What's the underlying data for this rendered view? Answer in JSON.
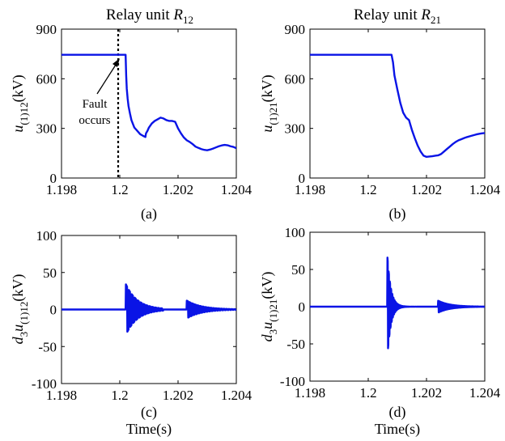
{
  "figure": {
    "line_color": "#0a14e6"
  },
  "chart_data": [
    {
      "panel": "a",
      "type": "line",
      "title_main": "Relay unit ",
      "title_var": "R",
      "title_sub": "12",
      "ylabel_parts": [
        "u",
        "(1)12",
        "(kV)"
      ],
      "caption": "(a)",
      "xlim": [
        1.198,
        1.204
      ],
      "ylim": [
        0,
        900
      ],
      "xticks": [
        1.198,
        1.2,
        1.202,
        1.204
      ],
      "xtick_labels": [
        "1.198",
        "1.2",
        "1.202",
        "1.204"
      ],
      "yticks": [
        0,
        300,
        600,
        900
      ],
      "ytick_labels": [
        "0",
        "300",
        "600",
        "900"
      ],
      "fault_line_x": 1.2,
      "annotation_lines": [
        "Fault",
        "occurs"
      ],
      "series": [
        {
          "x": [
            1.198,
            1.19985,
            1.2002,
            1.20022,
            1.20024,
            1.20027,
            1.2003,
            1.20035,
            1.2004,
            1.2005,
            1.2006,
            1.2007,
            1.2008,
            1.20088,
            1.2009,
            1.20095,
            1.201,
            1.2011,
            1.2012,
            1.2013,
            1.2014,
            1.2015,
            1.2016,
            1.2017,
            1.2018,
            1.2019,
            1.202,
            1.2021,
            1.2022,
            1.2023,
            1.2024,
            1.2025,
            1.2026,
            1.2027,
            1.2028,
            1.2029,
            1.203,
            1.2031,
            1.2032,
            1.2033,
            1.2034,
            1.2035,
            1.2036,
            1.2037,
            1.2038,
            1.2039,
            1.204
          ],
          "y": [
            745,
            745,
            745,
            620,
            540,
            480,
            435,
            390,
            350,
            305,
            285,
            265,
            255,
            248,
            270,
            285,
            305,
            330,
            345,
            355,
            365,
            360,
            350,
            345,
            345,
            340,
            300,
            270,
            245,
            228,
            218,
            205,
            190,
            182,
            175,
            170,
            168,
            172,
            178,
            185,
            192,
            197,
            200,
            198,
            192,
            188,
            180
          ]
        }
      ]
    },
    {
      "panel": "b",
      "type": "line",
      "title_main": "Relay unit ",
      "title_var": "R",
      "title_sub": "21",
      "ylabel_parts": [
        "u",
        "(1)21",
        "(kV)"
      ],
      "caption": "(b)",
      "xlim": [
        1.198,
        1.204
      ],
      "ylim": [
        0,
        900
      ],
      "xticks": [
        1.198,
        1.2,
        1.202,
        1.204
      ],
      "xtick_labels": [
        "1.198",
        "1.2",
        "1.202",
        "1.204"
      ],
      "yticks": [
        0,
        300,
        600,
        900
      ],
      "ytick_labels": [
        "0",
        "300",
        "600",
        "900"
      ],
      "series": [
        {
          "x": [
            1.198,
            1.2008,
            1.20085,
            1.2009,
            1.201,
            1.2011,
            1.2012,
            1.2013,
            1.2014,
            1.2015,
            1.2016,
            1.2017,
            1.2018,
            1.2019,
            1.202,
            1.2021,
            1.2022,
            1.2023,
            1.2024,
            1.2025,
            1.2026,
            1.2027,
            1.2028,
            1.2029,
            1.203,
            1.2031,
            1.2032,
            1.2033,
            1.2034,
            1.2035,
            1.2036,
            1.2037,
            1.2038,
            1.2039,
            1.204
          ],
          "y": [
            745,
            745,
            700,
            620,
            535,
            455,
            395,
            365,
            350,
            290,
            240,
            195,
            160,
            135,
            128,
            130,
            132,
            135,
            137,
            145,
            160,
            175,
            190,
            205,
            218,
            228,
            235,
            242,
            248,
            253,
            258,
            263,
            267,
            270,
            272
          ]
        }
      ]
    },
    {
      "panel": "c",
      "type": "line",
      "ylabel_parts": [
        "d",
        "3",
        "u",
        "(1)12",
        "(kV)"
      ],
      "caption": "(c)",
      "xlabel": "Time(s)",
      "xlim": [
        1.198,
        1.204
      ],
      "ylim": [
        -100,
        100
      ],
      "xticks": [
        1.198,
        1.2,
        1.202,
        1.204
      ],
      "xtick_labels": [
        "1.198",
        "1.2",
        "1.202",
        "1.204"
      ],
      "yticks": [
        -100,
        -50,
        0,
        50,
        100
      ],
      "ytick_labels": [
        "-100",
        "-50",
        "0",
        "50",
        "100"
      ],
      "bursts": [
        {
          "start": 1.20021,
          "end": 1.2015,
          "amp": 34,
          "decay": 0.0004,
          "period": 0.0001
        },
        {
          "start": 1.2023,
          "end": 1.204,
          "amp": 12,
          "decay": 0.0005,
          "period": 9e-05
        }
      ]
    },
    {
      "panel": "d",
      "type": "line",
      "ylabel_parts": [
        "d",
        "3",
        "u",
        "(1)21",
        "(kV)"
      ],
      "caption": "(d)",
      "xlabel": "Time(s)",
      "xlim": [
        1.198,
        1.204
      ],
      "ylim": [
        -100,
        100
      ],
      "xticks": [
        1.198,
        1.2,
        1.202,
        1.204
      ],
      "xtick_labels": [
        "1.198",
        "1.2",
        "1.202",
        "1.204"
      ],
      "yticks": [
        -100,
        -50,
        0,
        50,
        100
      ],
      "ytick_labels": [
        "-100",
        "-50",
        "0",
        "50",
        "100"
      ],
      "bursts": [
        {
          "start": 1.20066,
          "end": 1.2018,
          "amp": 66,
          "decay": 0.00012,
          "period": 4e-05
        },
        {
          "start": 1.2024,
          "end": 1.204,
          "amp": 8,
          "decay": 0.0004,
          "period": 4e-05
        }
      ]
    }
  ]
}
